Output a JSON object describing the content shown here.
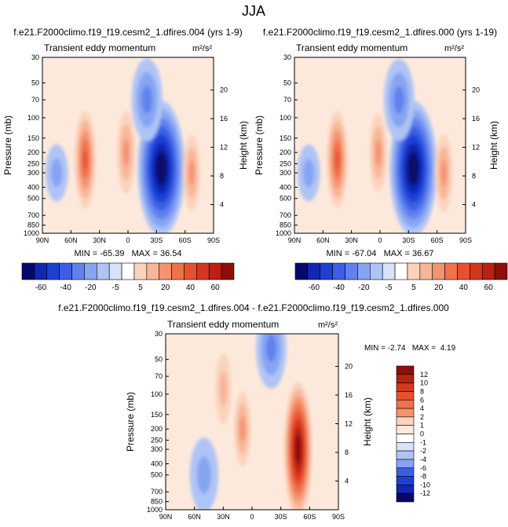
{
  "page": {
    "title": "JJA"
  },
  "colors": {
    "neg": [
      "#08086b",
      "#1126b1",
      "#1e3fd6",
      "#3a5fe6",
      "#5e82ee",
      "#86a4f2",
      "#afc4f5",
      "#d6e3fb"
    ],
    "pos": [
      "#fde9dc",
      "#fbd3bd",
      "#f8b597",
      "#f49370",
      "#f0714c",
      "#e7512f",
      "#d6361f",
      "#b82113",
      "#8e0e0b"
    ],
    "neutral": "#ffffff"
  },
  "chart_data": [
    {
      "type": "heatmap",
      "title": "f.e21.F2000climo.f19_f19.cesm2_1.dfires.004 (yrs 1-9)",
      "subtitle_left": "Transient eddy momentum",
      "units": "m²/s²",
      "ylabel": "Pressure (mb)",
      "y2label": "Height (km)",
      "x_ticks": [
        "90N",
        "60N",
        "30N",
        "0",
        "30S",
        "60S",
        "90S"
      ],
      "y_ticks": [
        "30",
        "50",
        "70",
        "100",
        "150",
        "200",
        "250",
        "300",
        "400",
        "500",
        "700",
        "850",
        "1000"
      ],
      "y2_ticks": [
        "20",
        "16",
        "12",
        "8",
        "4"
      ],
      "stats": "MIN = -65.39   MAX = 36.54",
      "min": -65.39,
      "max": 36.54,
      "colorbar_labels": [
        "-60",
        "-40",
        "-20",
        "-5",
        "5",
        "20",
        "40",
        "60"
      ],
      "features": [
        {
          "lat": -35,
          "p": 275,
          "value": -65.39
        },
        {
          "lat": -20,
          "p": 70,
          "value": -25
        },
        {
          "lat": 45,
          "p": 230,
          "value": 36.54
        },
        {
          "lat": 2,
          "p": 200,
          "value": 25
        },
        {
          "lat": -67,
          "p": 300,
          "value": 20
        },
        {
          "lat": 75,
          "p": 300,
          "value": -5
        }
      ]
    },
    {
      "type": "heatmap",
      "title": "f.e21.F2000climo.f19_f19.cesm2_1.dfires.000 (yrs 1-19)",
      "subtitle_left": "Transient eddy momentum",
      "units": "m²/s²",
      "ylabel": "Pressure (mb)",
      "y2label": "Height (km)",
      "x_ticks": [
        "90N",
        "60N",
        "30N",
        "0",
        "30S",
        "60S",
        "90S"
      ],
      "y_ticks": [
        "30",
        "50",
        "70",
        "100",
        "150",
        "200",
        "250",
        "300",
        "400",
        "500",
        "700",
        "850",
        "1000"
      ],
      "y2_ticks": [
        "20",
        "16",
        "12",
        "8",
        "4"
      ],
      "stats": "MIN = -67.04   MAX = 36.67",
      "min": -67.04,
      "max": 36.67,
      "colorbar_labels": [
        "-60",
        "-40",
        "-20",
        "-5",
        "5",
        "20",
        "40",
        "60"
      ],
      "features": [
        {
          "lat": -35,
          "p": 275,
          "value": -67.04
        },
        {
          "lat": -20,
          "p": 70,
          "value": -25
        },
        {
          "lat": 45,
          "p": 230,
          "value": 36.67
        },
        {
          "lat": 2,
          "p": 200,
          "value": 22
        },
        {
          "lat": -67,
          "p": 300,
          "value": 22
        },
        {
          "lat": 75,
          "p": 300,
          "value": -5
        }
      ]
    },
    {
      "type": "heatmap",
      "title": "f.e21.F2000climo.f19_f19.cesm2_1.dfires.004 - f.e21.F2000climo.f19_f19.cesm2_1.dfires.000",
      "subtitle_left": "Transient eddy momentum",
      "units": "m²/s²",
      "ylabel": "Pressure (mb)",
      "y2label": "Height (km)",
      "x_ticks": [
        "90N",
        "60N",
        "30N",
        "0",
        "30S",
        "60S",
        "90S"
      ],
      "y_ticks": [
        "30",
        "50",
        "70",
        "100",
        "150",
        "200",
        "250",
        "300",
        "400",
        "500",
        "700",
        "850",
        "1000"
      ],
      "y2_ticks": [
        "20",
        "16",
        "12",
        "8",
        "4"
      ],
      "stats": "MIN = -2.74   MAX =  4.19",
      "min": -2.74,
      "max": 4.19,
      "colorbar_labels": [
        "12",
        "10",
        "8",
        "6",
        "4",
        "2",
        "1",
        "0",
        "-1",
        "-2",
        "-4",
        "-6",
        "-8",
        "-10",
        "-12"
      ],
      "features": [
        {
          "lat": -48,
          "p": 300,
          "value": 4.19
        },
        {
          "lat": 10,
          "p": 200,
          "value": 1.2
        },
        {
          "lat": -20,
          "p": 40,
          "value": -1.5
        },
        {
          "lat": 50,
          "p": 500,
          "value": -1.2
        },
        {
          "lat": 30,
          "p": 90,
          "value": 1.0
        }
      ]
    }
  ]
}
